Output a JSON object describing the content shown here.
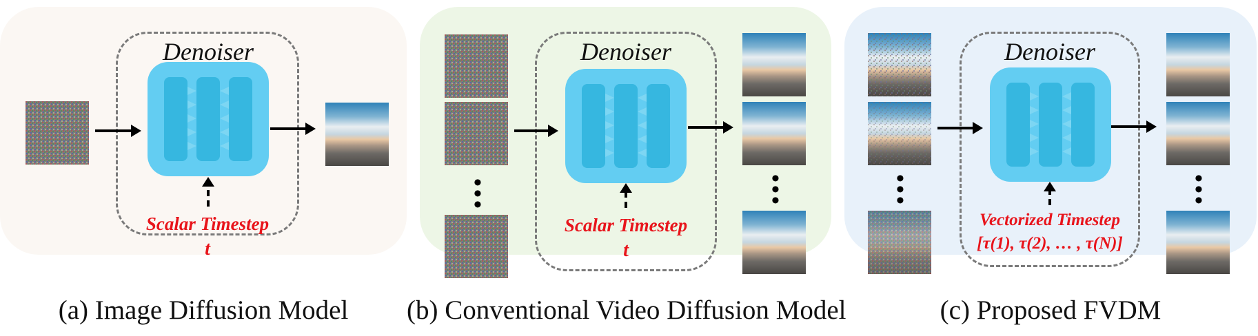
{
  "denoiser_label": "Denoiser",
  "panels": [
    {
      "caption": "(a) Image Diffusion Model",
      "timestep_line1": "Scalar Timestep",
      "timestep_line2": "t"
    },
    {
      "caption": "(b) Conventional Video Diffusion Model",
      "timestep_line1": "Scalar Timestep",
      "timestep_line2": "t"
    },
    {
      "caption": "(c) Proposed FVDM",
      "timestep_line1": "Vectorized Timestep",
      "timestep_line2": "[τ(1), τ(2), … , τ(N)]"
    }
  ],
  "colors": {
    "panel_a_bg": "#fbf7f3",
    "panel_b_bg": "#edf6e6",
    "panel_c_bg": "#e8f1fa",
    "block": "#63cdf2",
    "unet_bar": "#36b7e0",
    "timestep": "#e8141b"
  }
}
